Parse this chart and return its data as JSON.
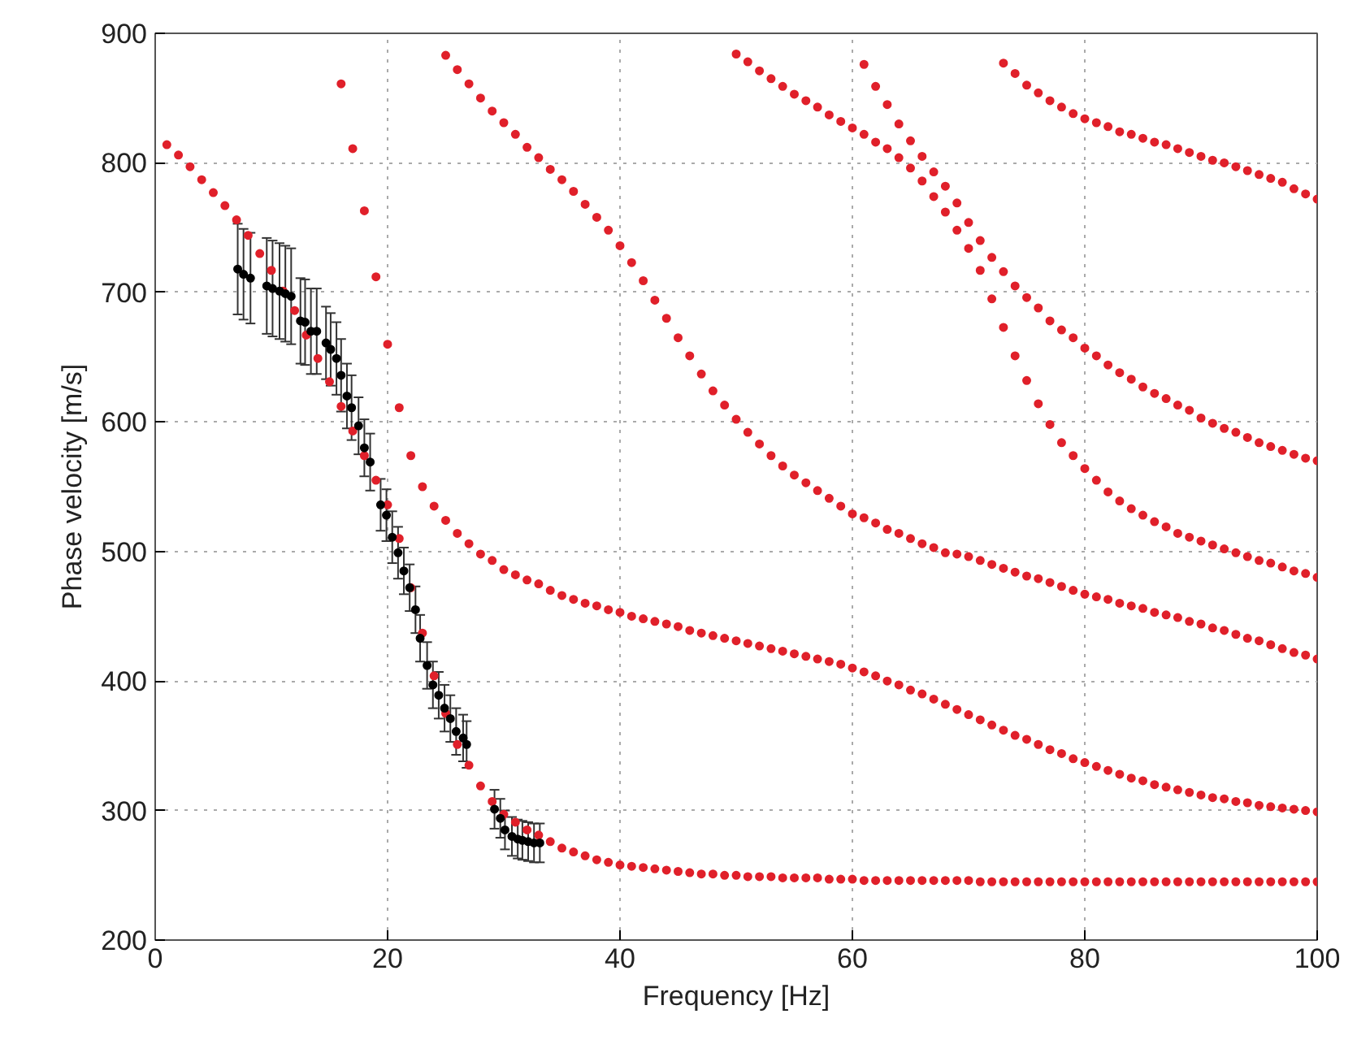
{
  "chart_data": {
    "type": "scatter",
    "xlabel": "Frequency [Hz]",
    "ylabel": "Phase velocity [m/s]",
    "xlim": [
      0,
      100
    ],
    "ylim": [
      200,
      900
    ],
    "xticks": [
      0,
      20,
      40,
      60,
      80,
      100
    ],
    "yticks": [
      200,
      300,
      400,
      500,
      600,
      700,
      800,
      900
    ],
    "grid": true,
    "marker": "circle",
    "series": [
      {
        "color": "#e0202a",
        "x": [
          1,
          2,
          3,
          4,
          5,
          6,
          7,
          8,
          9,
          10,
          11,
          12,
          13,
          14,
          15,
          16,
          17,
          18,
          19,
          20,
          21,
          22,
          23,
          24,
          25,
          26,
          27,
          28,
          29,
          30,
          31,
          32,
          33,
          34,
          35,
          36,
          37,
          38,
          39,
          40,
          41,
          42,
          43,
          44,
          45,
          46,
          47,
          48,
          49,
          50,
          51,
          52,
          53,
          54,
          55,
          56,
          57,
          58,
          59,
          60,
          61,
          62,
          63,
          64,
          65,
          66,
          67,
          68,
          69,
          70,
          71,
          72,
          73,
          74,
          75,
          76,
          77,
          78,
          79,
          80,
          81,
          82,
          83,
          84,
          85,
          86,
          87,
          88,
          89,
          90,
          91,
          92,
          93,
          94,
          95,
          96,
          97,
          98,
          99,
          100
        ],
        "values": [
          814,
          806,
          797,
          787,
          777,
          767,
          756,
          744,
          730,
          717,
          701,
          686,
          667,
          649,
          631,
          612,
          593,
          574,
          555,
          536,
          510,
          472,
          437,
          404,
          375,
          351,
          335,
          319,
          307,
          297,
          291,
          285,
          281,
          276,
          271,
          268,
          265,
          262,
          260,
          258,
          257,
          256,
          255,
          254,
          253,
          252,
          251,
          251,
          250,
          250,
          249,
          249,
          249,
          248,
          248,
          248,
          248,
          247,
          247,
          247,
          246,
          246,
          246,
          246,
          246,
          246,
          246,
          246,
          246,
          246,
          245,
          245,
          245,
          245,
          245,
          245,
          245,
          245,
          245,
          245,
          245,
          245,
          245,
          245,
          245,
          245,
          245,
          245,
          245,
          245,
          245,
          245,
          245,
          245,
          245,
          245,
          245,
          245,
          245,
          245
        ]
      },
      {
        "color": "#e0202a",
        "x": [
          16,
          17,
          18,
          19,
          20,
          21,
          22,
          23,
          24,
          25,
          26,
          27,
          28,
          29,
          30,
          31,
          32,
          33,
          34,
          35,
          36,
          37,
          38,
          39,
          40,
          41,
          42,
          43,
          44,
          45,
          46,
          47,
          48,
          49,
          50,
          51,
          52,
          53,
          54,
          55,
          56,
          57,
          58,
          59,
          60,
          61,
          62,
          63,
          64,
          65,
          66,
          67,
          68,
          69,
          70,
          71,
          72,
          73,
          74,
          75,
          76,
          77,
          78,
          79,
          80,
          81,
          82,
          83,
          84,
          85,
          86,
          87,
          88,
          89,
          90,
          91,
          92,
          93,
          94,
          95,
          96,
          97,
          98,
          99,
          100
        ],
        "values": [
          861,
          811,
          763,
          712,
          660,
          611,
          574,
          550,
          535,
          524,
          514,
          506,
          498,
          493,
          486,
          482,
          478,
          475,
          470,
          466,
          463,
          460,
          458,
          455,
          453,
          450,
          448,
          446,
          444,
          442,
          439,
          437,
          435,
          433,
          431,
          429,
          427,
          425,
          423,
          421,
          419,
          417,
          415,
          413,
          410,
          407,
          404,
          400,
          397,
          393,
          390,
          386,
          382,
          378,
          374,
          370,
          366,
          362,
          358,
          355,
          351,
          347,
          344,
          340,
          337,
          334,
          331,
          328,
          325,
          323,
          320,
          318,
          316,
          314,
          312,
          310,
          309,
          307,
          306,
          304,
          303,
          302,
          301,
          300,
          299
        ]
      },
      {
        "color": "#e0202a",
        "x": [
          25,
          26,
          27,
          28,
          29,
          30,
          31,
          32,
          33,
          34,
          35,
          36,
          37,
          38,
          39,
          40,
          41,
          42,
          43,
          44,
          45,
          46,
          47,
          48,
          49,
          50,
          51,
          52,
          53,
          54,
          55,
          56,
          57,
          58,
          59,
          60,
          61,
          62,
          63,
          64,
          65,
          66,
          67,
          68,
          69,
          70,
          71,
          72,
          73,
          74,
          75,
          76,
          77,
          78,
          79,
          80,
          81,
          82,
          83,
          84,
          85,
          86,
          87,
          88,
          89,
          90,
          91,
          92,
          93,
          94,
          95,
          96,
          97,
          98,
          99,
          100
        ],
        "values": [
          883,
          872,
          861,
          850,
          840,
          831,
          822,
          812,
          804,
          795,
          787,
          778,
          768,
          758,
          748,
          736,
          723,
          709,
          694,
          680,
          665,
          651,
          637,
          624,
          613,
          602,
          592,
          583,
          574,
          566,
          559,
          553,
          547,
          541,
          535,
          529,
          526,
          522,
          517,
          514,
          510,
          506,
          503,
          499,
          498,
          496,
          493,
          490,
          487,
          484,
          481,
          479,
          476,
          473,
          470,
          467,
          465,
          463,
          460,
          458,
          456,
          453,
          451,
          449,
          446,
          444,
          441,
          439,
          436,
          433,
          431,
          428,
          425,
          422,
          420,
          417
        ]
      },
      {
        "color": "#e0202a",
        "x": [
          50,
          51,
          52,
          53,
          54,
          55,
          56,
          57,
          58,
          59,
          60,
          61,
          62,
          63,
          64,
          65,
          66,
          67,
          68,
          69,
          70,
          71,
          72,
          73,
          74,
          75,
          76,
          77,
          78,
          79,
          80,
          81,
          82,
          83,
          84,
          85,
          86,
          87,
          88,
          89,
          90,
          91,
          92,
          93,
          94,
          95,
          96,
          97,
          98,
          99,
          100
        ],
        "values": [
          884,
          878,
          871,
          865,
          859,
          853,
          848,
          843,
          837,
          832,
          827,
          822,
          816,
          811,
          804,
          796,
          786,
          774,
          762,
          748,
          734,
          717,
          695,
          673,
          651,
          632,
          614,
          598,
          584,
          574,
          564,
          555,
          546,
          539,
          533,
          528,
          523,
          519,
          514,
          511,
          508,
          505,
          502,
          499,
          496,
          493,
          491,
          488,
          485,
          483,
          480
        ]
      },
      {
        "color": "#e0202a",
        "x": [
          61,
          62,
          63,
          64,
          65,
          66,
          67,
          68,
          69,
          70,
          71,
          72,
          73,
          74,
          75,
          76,
          77,
          78,
          79,
          80,
          81,
          82,
          83,
          84,
          85,
          86,
          87,
          88,
          89,
          90,
          91,
          92,
          93,
          94,
          95,
          96,
          97,
          98,
          99,
          100
        ],
        "values": [
          876,
          859,
          845,
          830,
          817,
          805,
          793,
          782,
          769,
          754,
          740,
          727,
          716,
          705,
          696,
          688,
          678,
          671,
          665,
          657,
          651,
          644,
          638,
          633,
          627,
          622,
          618,
          613,
          609,
          603,
          599,
          595,
          592,
          588,
          584,
          581,
          578,
          575,
          572,
          570
        ]
      },
      {
        "color": "#e0202a",
        "x": [
          73,
          74,
          75,
          76,
          77,
          78,
          79,
          80,
          81,
          82,
          83,
          84,
          85,
          86,
          87,
          88,
          89,
          90,
          91,
          92,
          93,
          94,
          95,
          96,
          97,
          98,
          99,
          100
        ],
        "values": [
          877,
          869,
          860,
          854,
          848,
          843,
          838,
          834,
          831,
          828,
          824,
          822,
          819,
          816,
          814,
          811,
          808,
          805,
          802,
          800,
          797,
          794,
          791,
          788,
          785,
          780,
          776,
          772
        ]
      },
      {
        "color": "#000000",
        "x": [
          7.1,
          7.6,
          8.2,
          9.6,
          10.1,
          10.7,
          11.2,
          11.7,
          12.5,
          12.9,
          13.4,
          13.9,
          14.7,
          15.1,
          15.6,
          16,
          16.5,
          16.9,
          17.5,
          18,
          18.5,
          19.4,
          19.9,
          20.4,
          20.9,
          21.4,
          21.9,
          22.4,
          22.8,
          23.4,
          23.9,
          24.4,
          24.9,
          25.4,
          25.9,
          26.5,
          26.8,
          29.2,
          29.7,
          30.1,
          30.7,
          31.2,
          31.6,
          32.1,
          32.6,
          33.1
        ],
        "values": [
          718,
          714,
          711,
          705,
          703,
          701,
          699,
          697,
          678,
          677,
          670,
          670,
          661,
          656,
          649,
          636,
          620,
          611,
          597,
          580,
          569,
          536,
          528,
          511,
          499,
          485,
          472,
          455,
          433,
          412,
          397,
          389,
          379,
          371,
          361,
          356,
          351,
          301,
          294,
          285,
          280,
          278,
          277,
          276,
          275,
          275
        ],
        "errors": [
          35,
          35,
          35,
          37,
          37,
          37,
          37,
          37,
          33,
          33,
          33,
          33,
          28,
          28,
          28,
          28,
          25,
          25,
          22,
          22,
          22,
          20,
          20,
          20,
          20,
          18,
          18,
          18,
          18,
          18,
          18,
          18,
          18,
          18,
          18,
          18,
          18,
          15,
          15,
          15,
          15,
          15,
          15,
          15,
          15,
          15
        ]
      }
    ]
  }
}
